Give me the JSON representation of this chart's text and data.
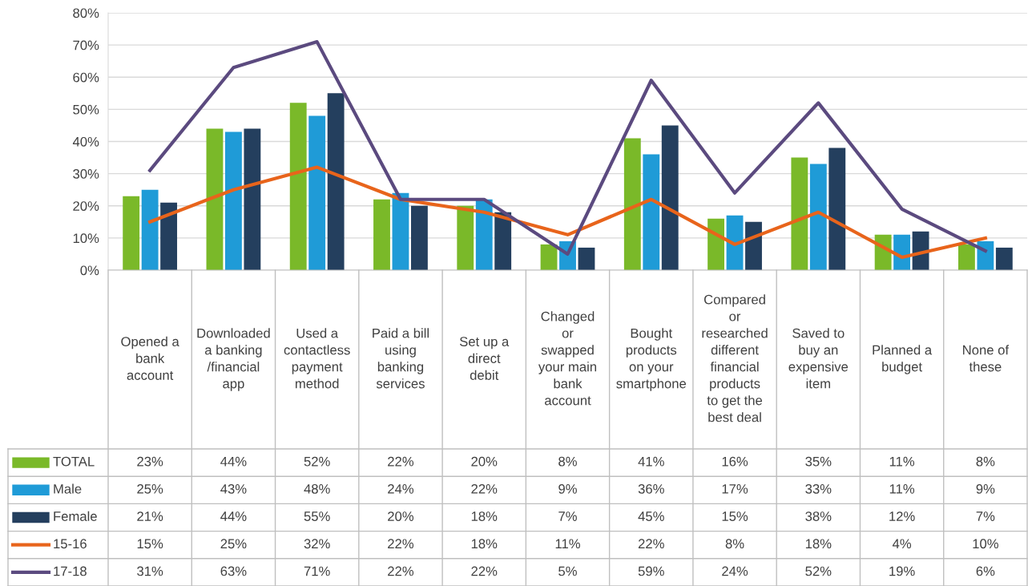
{
  "chart_data": {
    "type": "bar",
    "categories": [
      "Opened a\nbank\naccount",
      "Downloaded\na banking\n/financial\napp",
      "Used a\ncontactless\npayment\nmethod",
      "Paid a bill\nusing\nbanking\nservices",
      "Set up a\ndirect\ndebit",
      "Changed\nor\nswapped\nyour main\nbank\naccount",
      "Bought\nproducts\non your\nsmartphone",
      "Compared\nor\nresearched\ndifferent\nfinancial\nproducts\nto get the\nbest deal",
      "Saved to\nbuy an\nexpensive\nitem",
      "Planned a\nbudget",
      "None of\nthese"
    ],
    "series": [
      {
        "name": "TOTAL",
        "color": "#7ab929",
        "values": [
          23,
          44,
          52,
          22,
          20,
          8,
          41,
          16,
          35,
          11,
          8
        ],
        "value_labels": [
          "23%",
          "44%",
          "52%",
          "22%",
          "20%",
          "8%",
          "41%",
          "16%",
          "35%",
          "11%",
          "8%"
        ]
      },
      {
        "name": "Male",
        "color": "#1f9bd7",
        "values": [
          25,
          43,
          48,
          24,
          22,
          9,
          36,
          17,
          33,
          11,
          9
        ],
        "value_labels": [
          "25%",
          "43%",
          "48%",
          "24%",
          "22%",
          "9%",
          "36%",
          "17%",
          "33%",
          "11%",
          "9%"
        ]
      },
      {
        "name": "Female",
        "color": "#243f5e",
        "values": [
          21,
          44,
          55,
          20,
          18,
          7,
          45,
          15,
          38,
          12,
          7
        ],
        "value_labels": [
          "21%",
          "44%",
          "55%",
          "20%",
          "18%",
          "7%",
          "45%",
          "15%",
          "38%",
          "12%",
          "7%"
        ]
      },
      {
        "name": "15-16",
        "type": "line",
        "color": "#e8641b",
        "values": [
          15,
          25,
          32,
          22,
          18,
          11,
          22,
          8,
          18,
          4,
          10
        ],
        "value_labels": [
          "15%",
          "25%",
          "32%",
          "22%",
          "18%",
          "11%",
          "22%",
          "8%",
          "18%",
          "4%",
          "10%"
        ]
      },
      {
        "name": "17-18",
        "type": "line",
        "color": "#5b4a7f",
        "values": [
          31,
          63,
          71,
          22,
          22,
          5,
          59,
          24,
          52,
          19,
          6
        ],
        "value_labels": [
          "31%",
          "63%",
          "71%",
          "22%",
          "22%",
          "5%",
          "59%",
          "24%",
          "52%",
          "19%",
          "6%"
        ]
      }
    ],
    "ylim": [
      0,
      80
    ],
    "yticks": [
      {
        "value": 0,
        "label": "0%"
      },
      {
        "value": 10,
        "label": "10%"
      },
      {
        "value": 20,
        "label": "20%"
      },
      {
        "value": 30,
        "label": "30%"
      },
      {
        "value": 40,
        "label": "40%"
      },
      {
        "value": 50,
        "label": "50%"
      },
      {
        "value": 60,
        "label": "60%"
      },
      {
        "value": 70,
        "label": "70%"
      },
      {
        "value": 80,
        "label": "80%"
      }
    ],
    "grid": "y",
    "legend": "bottom left",
    "marker": "none",
    "line_style": "solid"
  }
}
